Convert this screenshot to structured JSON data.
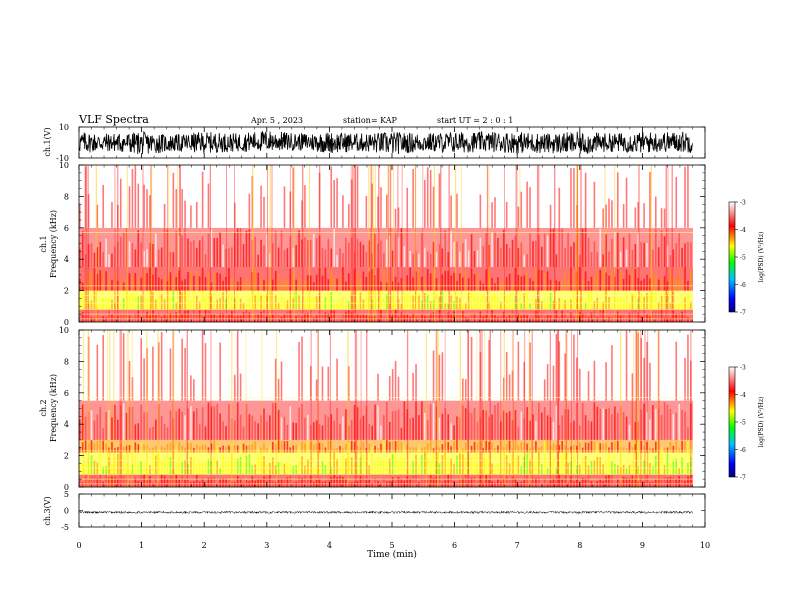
{
  "header": {
    "title": "VLF Spectra",
    "date": "Apr. 5 , 2023",
    "station": "station= KAP",
    "start": "start UT = 2 : 0 : 1"
  },
  "chart_data": [
    {
      "type": "line",
      "name": "ch1-waveform",
      "ylabel": "ch.1(V)",
      "ylim": [
        -10,
        10
      ],
      "yticks": [
        "10",
        "-10"
      ],
      "x": [
        0,
        0.5,
        1.0,
        1.5,
        2.0,
        2.5,
        3.0,
        3.5,
        4.0,
        4.5,
        5.0,
        5.5,
        6.0,
        6.5,
        7.0,
        7.5,
        8.0,
        8.5,
        9.0,
        9.5,
        9.8
      ],
      "envelope_min": [
        -7,
        -6,
        -8,
        -6,
        -7,
        -6,
        -6,
        -5,
        -7,
        -6,
        -8,
        -6,
        -7,
        -6,
        -7,
        -7,
        -8,
        -6,
        -7,
        -6,
        -7
      ],
      "envelope_max": [
        7,
        6,
        7,
        5,
        7,
        6,
        8,
        6,
        7,
        6,
        7,
        6,
        7,
        7,
        7,
        6,
        7,
        6,
        7,
        7,
        8
      ]
    },
    {
      "type": "heatmap",
      "name": "ch1-spectrogram",
      "ylabel_top": "ch.1",
      "ylabel": "Frequency (kHz)",
      "ylim": [
        0,
        10
      ],
      "yticks": [
        "0",
        "2",
        "4",
        "6",
        "8",
        "10"
      ],
      "bands_kHz": [
        {
          "from": 0,
          "to": 0.8,
          "level": -3.8
        },
        {
          "from": 0.8,
          "to": 2.0,
          "level": -4.7
        },
        {
          "from": 2.0,
          "to": 3.5,
          "level": -4.1
        },
        {
          "from": 3.5,
          "to": 6.0,
          "level": -3.5
        },
        {
          "from": 6.0,
          "to": 10,
          "level": -3.2
        }
      ],
      "colorbar": {
        "label": "log(PSD) (V²/Hz)",
        "ticks": [
          "-3",
          "-4",
          "-5",
          "-6",
          "-7"
        ],
        "range": [
          -7,
          -3
        ]
      }
    },
    {
      "type": "heatmap",
      "name": "ch2-spectrogram",
      "ylabel_top": "ch.2",
      "ylabel": "Frequency (kHz)",
      "ylim": [
        0,
        10
      ],
      "yticks": [
        "0",
        "2",
        "4",
        "6",
        "8",
        "10"
      ],
      "bands_kHz": [
        {
          "from": 0,
          "to": 0.8,
          "level": -3.8
        },
        {
          "from": 0.8,
          "to": 2.2,
          "level": -4.8
        },
        {
          "from": 2.2,
          "to": 3.0,
          "level": -4.3
        },
        {
          "from": 3.0,
          "to": 5.5,
          "level": -3.6
        },
        {
          "from": 5.5,
          "to": 10,
          "level": -3.2
        }
      ],
      "colorbar": {
        "label": "log(PSD) (V²/Hz)",
        "ticks": [
          "-3",
          "-4",
          "-5",
          "-6",
          "-7"
        ],
        "range": [
          -7,
          -3
        ]
      }
    },
    {
      "type": "line",
      "name": "ch3-waveform",
      "ylabel": "ch.3(V)",
      "ylim": [
        -5,
        5
      ],
      "yticks": [
        "5",
        "0",
        "-5"
      ],
      "x": [
        0,
        9.8
      ],
      "envelope_min": [
        -0.9,
        -0.9
      ],
      "envelope_max": [
        -0.2,
        -0.2
      ]
    }
  ],
  "xaxis": {
    "label": "Time (min)",
    "range": [
      0,
      10
    ],
    "ticks": [
      "0",
      "1",
      "2",
      "3",
      "4",
      "5",
      "6",
      "7",
      "8",
      "9",
      "10"
    ]
  }
}
